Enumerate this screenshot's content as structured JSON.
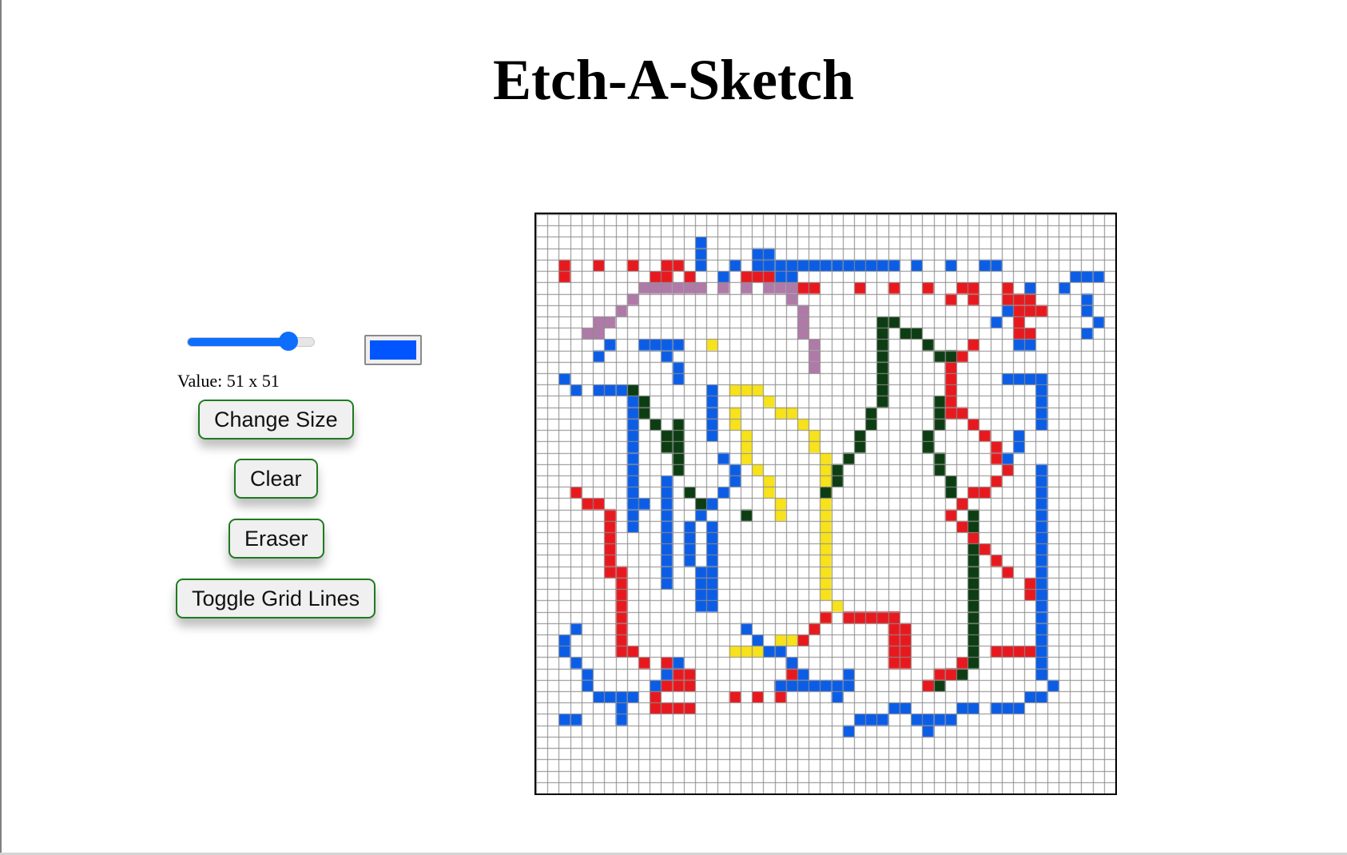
{
  "title": "Etch-A-Sketch",
  "controls": {
    "size_slider": {
      "min": 1,
      "max": 64,
      "value": 51
    },
    "color_picker": {
      "value": "#0055ff"
    },
    "value_label": "Value: 51 x 51",
    "buttons": {
      "change_size": "Change Size",
      "clear": "Clear",
      "eraser": "Eraser",
      "toggle_grid": "Toggle Grid Lines"
    }
  },
  "grid": {
    "size": 51,
    "grid_lines": true,
    "palette": {
      "r": "#e8191e",
      "b": "#0b5de6",
      "g": "#0d3d12",
      "y": "#f7e21b",
      "p": "#b07aa8"
    },
    "rows": [
      "...................................................",
      "...................................................",
      "..............b....................................",
      "..............b....bb..............................",
      "..r..r..r..rr.b..b.bbbbbbbbbbbbb.b..b..bb..........",
      "..r.......rr.r..b.rrrbb........................bbb.",
      ".......................rr...r..r..r..rr..r.b..b....",
      "....................................r.r..rrr....b..",
      "..........................................rrr...b..",
      "..........................................r......b.",
      "..........................................rr....b..",
      "..........................................bb.......",
      "...................................................",
      "...................................................",
      "...................................................",
      "...................................................",
      "...................................................",
      "...................................................",
      "...................................................",
      "...................................................",
      "...................................................",
      "...................................................",
      "...................................................",
      "...................................................",
      "...................................................",
      "...................................................",
      "...................................................",
      "...................................................",
      "...................................................",
      "...................................................",
      "...................................................",
      "...................................................",
      "...................................................",
      "...................................................",
      "...................................................",
      "...................................................",
      "...................................................",
      "...................................................",
      "...................................................",
      "...................................................",
      "...................................................",
      "...................................................",
      "...................................................",
      "...................................................",
      "...................................................",
      "...................................................",
      "...................................................",
      "...................................................",
      "...................................................",
      "...................................................",
      "..................................................."
    ]
  }
}
